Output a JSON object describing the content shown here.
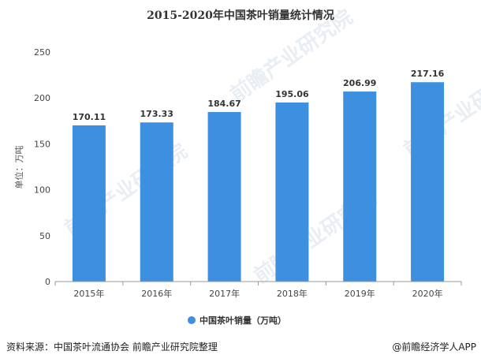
{
  "chart_data": {
    "type": "bar",
    "title": "2015-2020年中国茶叶销量统计情况",
    "ylabel": "单位：万吨",
    "xlabel": "",
    "categories": [
      "2015年",
      "2016年",
      "2017年",
      "2018年",
      "2019年",
      "2020年"
    ],
    "series": [
      {
        "name": "中国茶叶销量（万吨）",
        "values": [
          170.11,
          173.33,
          184.67,
          195.06,
          206.99,
          217.16
        ],
        "color": "#3d8fe0"
      }
    ],
    "data_labels": [
      "170.11",
      "173.33",
      "184.67",
      "195.06",
      "206.99",
      "217.16"
    ],
    "ylim": [
      0,
      250
    ],
    "yticks": [
      0,
      50,
      100,
      150,
      200,
      250
    ],
    "grid": false,
    "legend": "bottom-center"
  },
  "footer": {
    "source": "资料来源：中国茶叶流通协会 前瞻产业研究院整理",
    "brand": "@前瞻经济学人APP"
  },
  "watermark": {
    "text": "前瞻产业研究院"
  }
}
